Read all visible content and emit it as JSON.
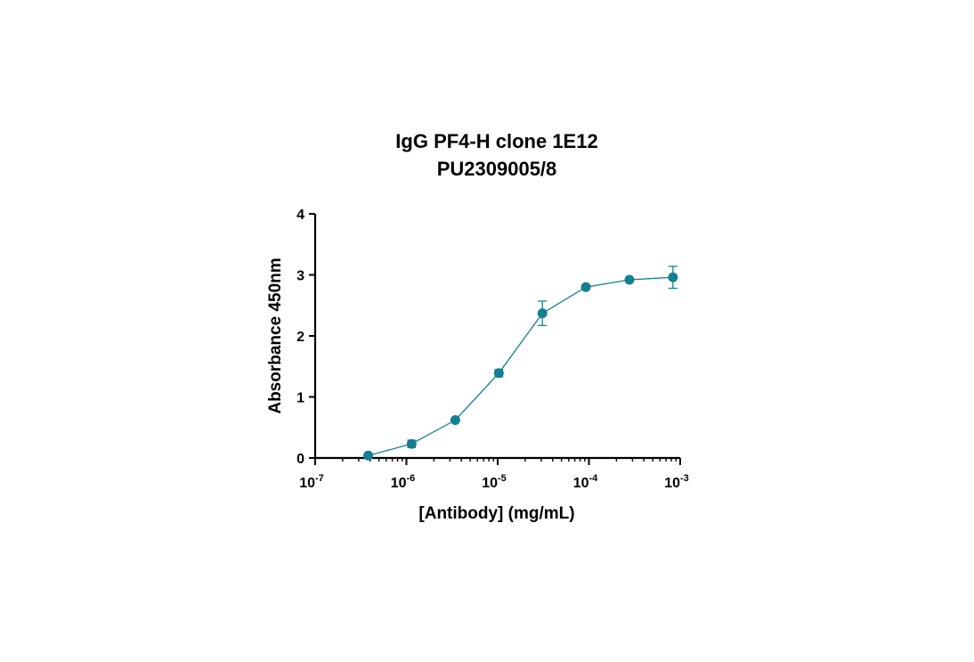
{
  "chart_data": {
    "type": "scatter",
    "title": "IgG PF4-H clone 1E12",
    "subtitle": "PU2309005/8",
    "xlabel": "[Antibody] (mg/mL)",
    "ylabel": "Absorbance 450nm",
    "xscale": "log",
    "xlim": [
      1e-07,
      0.001
    ],
    "ylim": [
      0,
      4
    ],
    "grid": false,
    "x_ticks": [
      {
        "base": "10",
        "exp": "-7",
        "value": 1e-07
      },
      {
        "base": "10",
        "exp": "-6",
        "value": 1e-06
      },
      {
        "base": "10",
        "exp": "-5",
        "value": 1e-05
      },
      {
        "base": "10",
        "exp": "-4",
        "value": 0.0001
      },
      {
        "base": "10",
        "exp": "-3",
        "value": 0.001
      }
    ],
    "y_ticks": [
      "0",
      "1",
      "2",
      "3",
      "4"
    ],
    "color": "#147f91",
    "series": [
      {
        "x": [
          3.81e-07,
          1.14e-06,
          3.43e-06,
          1.03e-05,
          3.09e-05,
          9.26e-05,
          0.000278,
          0.000833
        ],
        "y": [
          0.04,
          0.23,
          0.62,
          1.39,
          2.37,
          2.8,
          2.92,
          2.96
        ],
        "error": [
          0.02,
          0.06,
          0.03,
          0.06,
          0.2,
          0.03,
          0.03,
          0.18
        ]
      }
    ]
  }
}
